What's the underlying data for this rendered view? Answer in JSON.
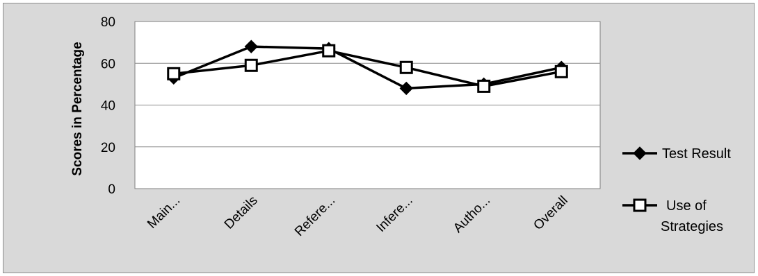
{
  "chart_data": {
    "type": "line",
    "title": "",
    "xlabel": "",
    "ylabel": "Scores in Percentage",
    "categories": [
      "Main...",
      "Details",
      "Refere...",
      "Infere...",
      "Autho...",
      "Overall"
    ],
    "ylim": [
      0,
      80
    ],
    "yticks": [
      0,
      20,
      40,
      60,
      80
    ],
    "grid": true,
    "legend_position": "right",
    "series": [
      {
        "name": "Test Result",
        "marker": "diamond-filled",
        "values": [
          53,
          68,
          67,
          48,
          50,
          58
        ]
      },
      {
        "name": "Use of Strategies",
        "name_lines": [
          "Use of",
          "Strategies"
        ],
        "marker": "square-open",
        "values": [
          55,
          59,
          66,
          58,
          49,
          56
        ]
      }
    ],
    "colors": {
      "line": "#000000",
      "plot_bg": "#ffffff",
      "chart_bg": "#d9d9d9",
      "grid": "#888888"
    }
  }
}
